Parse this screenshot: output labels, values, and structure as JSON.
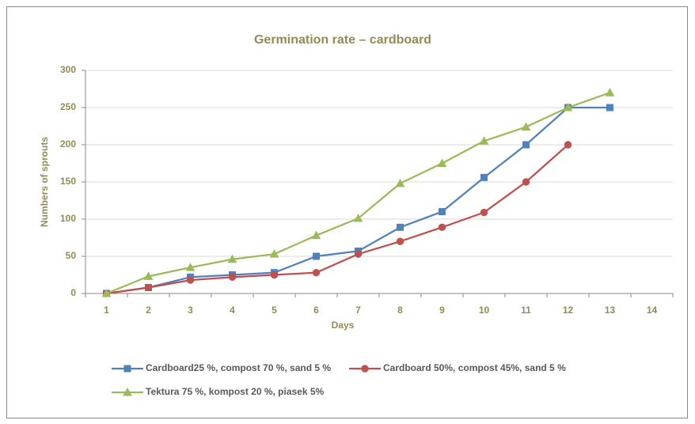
{
  "chart_data": {
    "type": "line",
    "title": "Germination rate – cardboard",
    "x_label": "Days",
    "y_label": "Numbers of sprouts",
    "categories": [
      1,
      2,
      3,
      4,
      5,
      6,
      7,
      8,
      9,
      10,
      11,
      12,
      13,
      14
    ],
    "series": [
      {
        "name": "Cardboard25 %, compost 70 %, sand 5 %",
        "color": "#4f81bd",
        "marker": "square",
        "values": [
          0,
          8,
          22,
          25,
          28,
          50,
          57,
          89,
          110,
          156,
          200,
          250,
          250,
          null
        ]
      },
      {
        "name": "Cardboard 50%, compost 45%, sand 5 %",
        "color": "#c0504d",
        "marker": "circle",
        "values": [
          0,
          8,
          18,
          22,
          25,
          28,
          53,
          70,
          89,
          109,
          150,
          200,
          null,
          null
        ]
      },
      {
        "name": "Tektura 75 %, kompost 20 %, piasek 5%",
        "color": "#9bbb59",
        "marker": "triangle",
        "values": [
          0,
          23,
          35,
          46,
          53,
          78,
          101,
          148,
          175,
          205,
          224,
          250,
          270,
          null
        ]
      }
    ],
    "ylim": [
      0,
      300
    ],
    "yticks": [
      0,
      50,
      100,
      150,
      200,
      250,
      300
    ],
    "grid": true,
    "legend": "bottom"
  }
}
